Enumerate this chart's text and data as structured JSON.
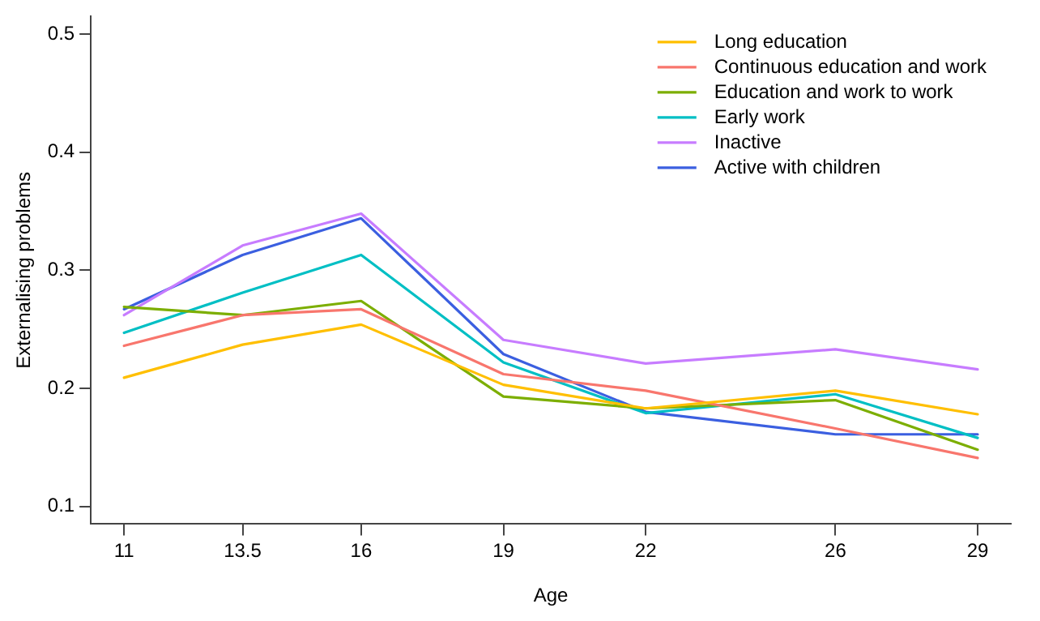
{
  "chart_data": {
    "type": "line",
    "xlabel": "Age",
    "ylabel": "Externalising problems",
    "x": [
      11,
      13.5,
      16,
      19,
      22,
      26,
      29
    ],
    "xlim": [
      10.3,
      29.7
    ],
    "xticks": [
      11,
      13.5,
      16,
      19,
      22,
      26,
      29
    ],
    "ylim": [
      0.085,
      0.515
    ],
    "yticks": [
      0.1,
      0.2,
      0.3,
      0.4,
      0.5
    ],
    "grid": false,
    "legend": "top right",
    "marker": "none",
    "line_style": "solid",
    "series": [
      {
        "name": "Long education",
        "color": "#ffbf00",
        "values": [
          0.209,
          0.237,
          0.254,
          0.203,
          0.183,
          0.198,
          0.178
        ]
      },
      {
        "name": "Continuous education and work",
        "color": "#f8766d",
        "values": [
          0.236,
          0.262,
          0.267,
          0.212,
          0.198,
          0.166,
          0.141
        ]
      },
      {
        "name": "Education and work to work",
        "color": "#7cae00",
        "values": [
          0.269,
          0.262,
          0.274,
          0.193,
          0.183,
          0.19,
          0.148
        ]
      },
      {
        "name": "Early work",
        "color": "#00bfc4",
        "values": [
          0.247,
          0.281,
          0.313,
          0.222,
          0.179,
          0.195,
          0.158
        ]
      },
      {
        "name": "Inactive",
        "color": "#c77cff",
        "values": [
          0.262,
          0.321,
          0.348,
          0.241,
          0.221,
          0.233,
          0.216
        ]
      },
      {
        "name": "Active with children",
        "color": "#3b5fe0",
        "values": [
          0.267,
          0.313,
          0.344,
          0.229,
          0.18,
          0.161,
          0.161
        ]
      }
    ]
  }
}
